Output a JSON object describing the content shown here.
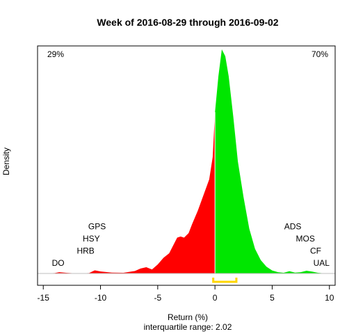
{
  "chart_data": {
    "type": "area",
    "title": "Week of 2016-08-29 through 2016-09-02",
    "xlabel": "Return (%)",
    "ylabel": "Density",
    "subtitle": "interquartile range: 2.02",
    "xlim": [
      -15.5,
      10.5
    ],
    "xticks": [
      -15,
      -10,
      -5,
      0,
      5,
      10
    ],
    "ylim": [
      0,
      1.0
    ],
    "grid": false,
    "split_at": 0,
    "left_share": {
      "text": "29%",
      "color": "#ff0000"
    },
    "right_share": {
      "text": "70%",
      "color": "#00aa00"
    },
    "colors": {
      "negative": "#ff0000",
      "positive": "#00e600",
      "iqr": "#ffd700"
    },
    "iqr_range": [
      -0.15,
      1.87
    ],
    "density": {
      "x": [
        -15,
        -14,
        -13.6,
        -13,
        -12,
        -11,
        -10.5,
        -10,
        -9,
        -8,
        -7,
        -6.5,
        -6,
        -5.5,
        -5,
        -4.5,
        -4,
        -3.6,
        -3.3,
        -3,
        -2.7,
        -2.3,
        -2,
        -1.5,
        -1,
        -0.5,
        -0.2,
        0,
        0.3,
        0.6,
        0.9,
        1.2,
        1.6,
        2,
        2.5,
        3,
        3.5,
        4,
        4.5,
        5,
        5.5,
        6,
        6.5,
        7,
        7.5,
        8,
        8.5,
        9,
        9.5,
        10
      ],
      "y": [
        0.0,
        0.002,
        0.006,
        0.003,
        0.0,
        0.002,
        0.014,
        0.009,
        0.004,
        0.003,
        0.011,
        0.022,
        0.028,
        0.018,
        0.04,
        0.07,
        0.09,
        0.13,
        0.16,
        0.165,
        0.16,
        0.18,
        0.22,
        0.28,
        0.35,
        0.42,
        0.52,
        0.72,
        0.88,
        1.0,
        0.97,
        0.88,
        0.7,
        0.5,
        0.34,
        0.2,
        0.11,
        0.06,
        0.03,
        0.013,
        0.006,
        0.003,
        0.01,
        0.004,
        0.006,
        0.012,
        0.008,
        0.003,
        0.001,
        0.0
      ]
    },
    "annotations": [
      {
        "text": "DO",
        "x": -13.7,
        "level": 0
      },
      {
        "text": "HRB",
        "x": -11.3,
        "level": 1
      },
      {
        "text": "HSY",
        "x": -10.8,
        "level": 2
      },
      {
        "text": "GPS",
        "x": -10.3,
        "level": 3
      },
      {
        "text": "ADS",
        "x": 6.8,
        "level": 3
      },
      {
        "text": "MOS",
        "x": 7.9,
        "level": 2
      },
      {
        "text": "CF",
        "x": 8.8,
        "level": 1
      },
      {
        "text": "UAL",
        "x": 9.3,
        "level": 0
      }
    ]
  }
}
